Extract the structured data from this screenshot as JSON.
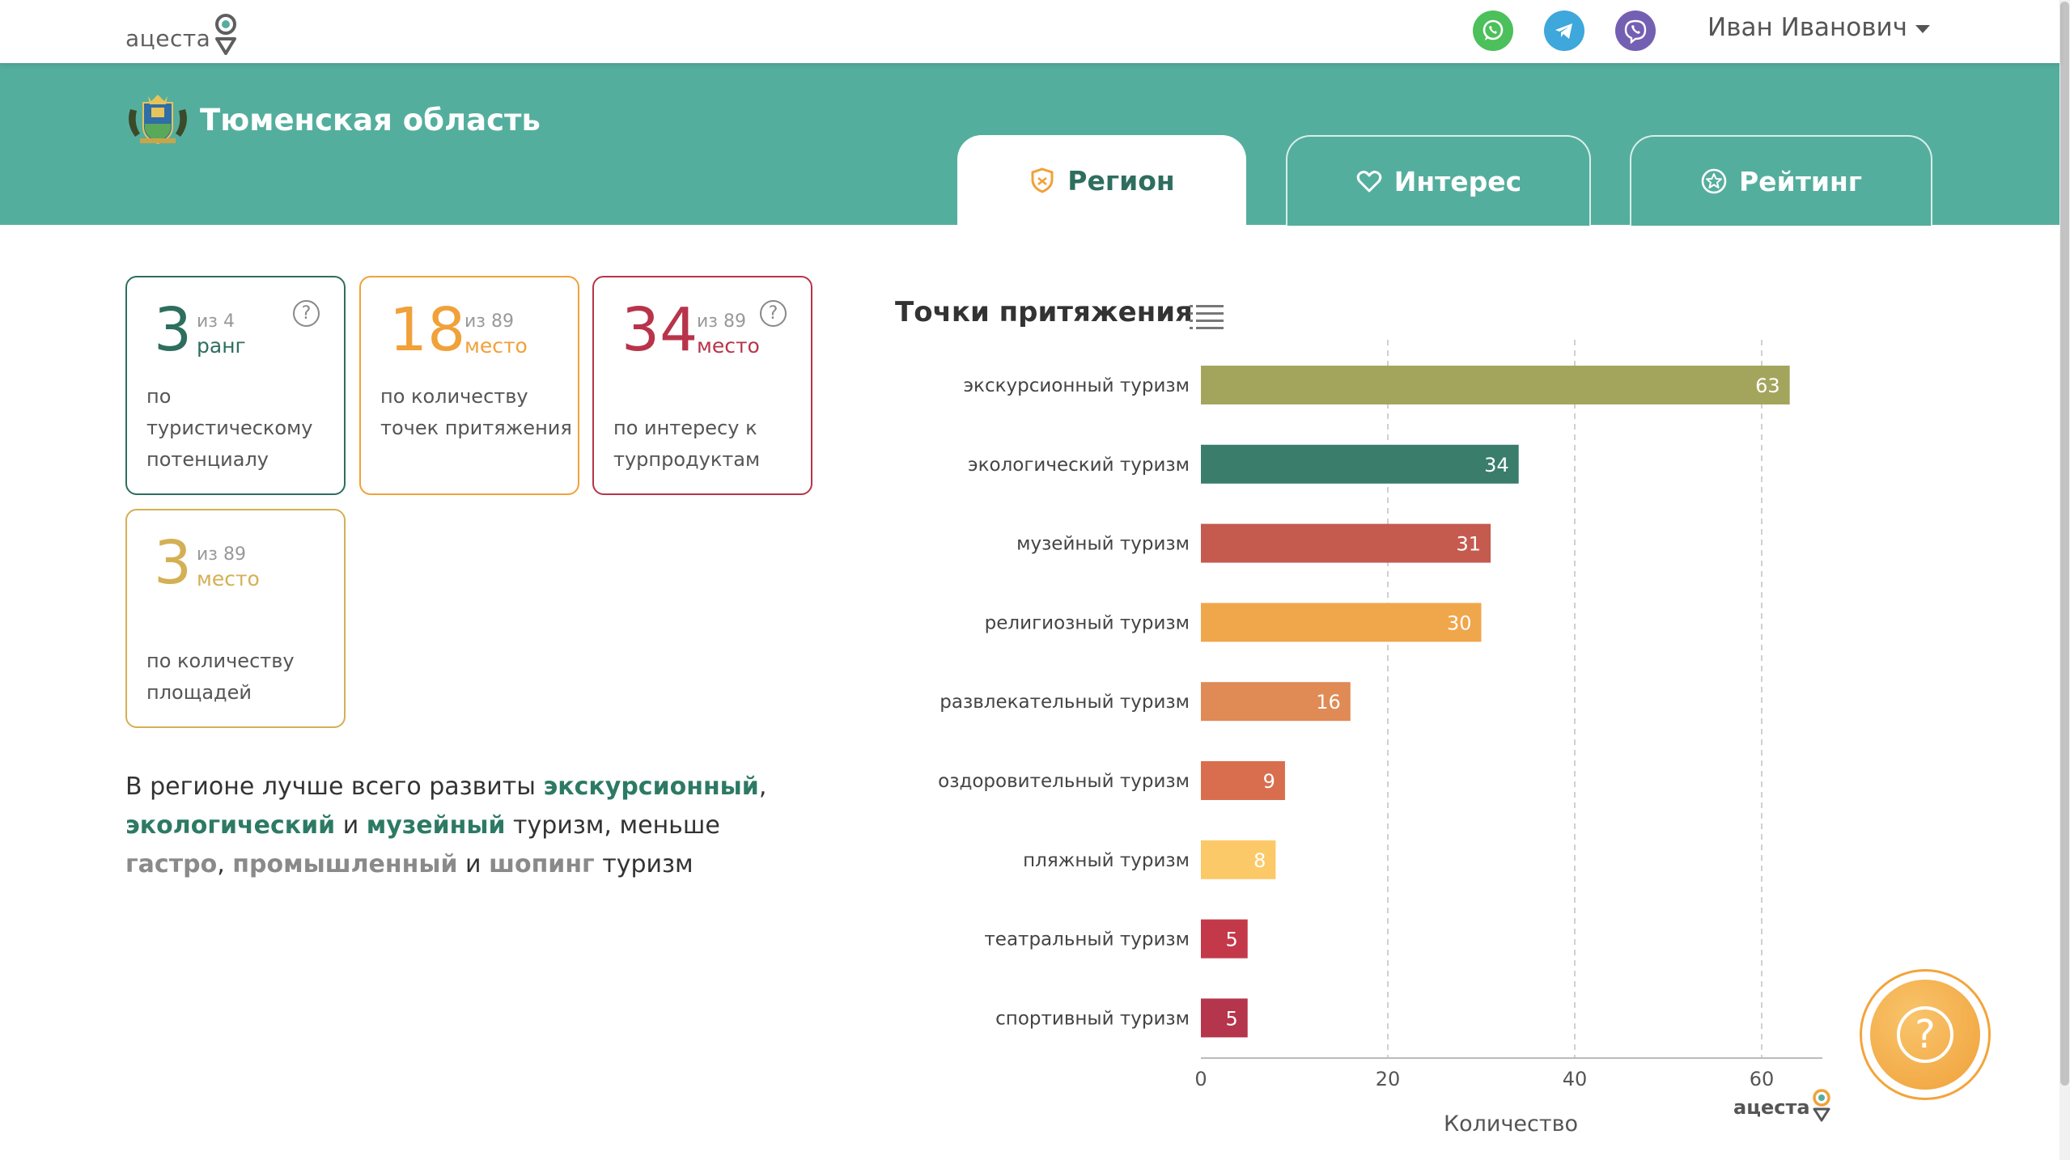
{
  "header": {
    "logo_text": "ацеста",
    "user_name": "Иван Иванович",
    "messengers": [
      {
        "name": "whatsapp",
        "color": "#4cc05a"
      },
      {
        "name": "telegram",
        "color": "#3ea7db"
      },
      {
        "name": "viber",
        "color": "#7360b2"
      }
    ]
  },
  "region": {
    "name": "Тюменская область"
  },
  "tabs": [
    {
      "label": "Регион",
      "icon": "shield-icon",
      "active": true
    },
    {
      "label": "Интерес",
      "icon": "heart-icon",
      "active": false
    },
    {
      "label": "Рейтинг",
      "icon": "star-badge-icon",
      "active": false
    }
  ],
  "cards": [
    {
      "value": "3",
      "of": "из 4",
      "unit": "ранг",
      "desc": "по туристическому потенциалу",
      "color": "#2e6e5e",
      "has_help": true
    },
    {
      "value": "18",
      "of": "из 89",
      "unit": "место",
      "desc": "по количеству точек притяжения",
      "color": "#f0a13a",
      "has_help": false
    },
    {
      "value": "34",
      "of": "из 89",
      "unit": "место",
      "desc": "по интересу к турпродуктам",
      "color": "#b8344a",
      "has_help": true
    },
    {
      "value": "3",
      "of": "из 89",
      "unit": "место",
      "desc": "по количеству площадей",
      "color": "#d4b055",
      "has_help": false
    }
  ],
  "summary": {
    "p1": "В регионе лучше всего развиты ",
    "w1": "экскурсионный",
    "p2": ", ",
    "w2": "экологический",
    "p3": " и ",
    "w3": "музейный",
    "p4": " туризм, меньше ",
    "w4": "гастро",
    "p5": ", ",
    "w5": "промышленный",
    "p6": " и ",
    "w6": "шопинг",
    "p7": " туризм"
  },
  "chart_data": {
    "type": "bar",
    "orientation": "horizontal",
    "title": "Точки притяжения",
    "xlabel": "Количество",
    "ylabel": "",
    "xlim": [
      0,
      66
    ],
    "xticks": [
      0,
      20,
      40,
      60
    ],
    "grid": "vertical dashed",
    "categories": [
      "экскурсионный туризм",
      "экологический туризм",
      "музейный туризм",
      "религиозный туризм",
      "развлекательный туризм",
      "оздоровительный туризм",
      "пляжный туризм",
      "театральный туризм",
      "спортивный туризм"
    ],
    "values": [
      63,
      34,
      31,
      30,
      16,
      9,
      8,
      5,
      5
    ],
    "colors": [
      "#a4a55d",
      "#3a7d6b",
      "#c55a4f",
      "#f0a64a",
      "#e08a55",
      "#d96e4f",
      "#fcc968",
      "#c4394a",
      "#b5354c"
    ],
    "watermark": "ацеста"
  },
  "help_fab": {
    "symbol": "?"
  }
}
